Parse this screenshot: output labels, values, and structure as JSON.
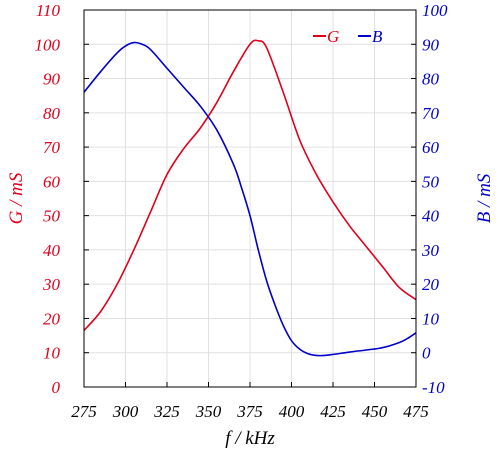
{
  "chart_data": {
    "type": "line",
    "title": "",
    "xlabel": "f / kHz",
    "ylabel_left": "G / mS",
    "ylabel_right": "B / mS",
    "xlim": [
      275,
      475
    ],
    "ylim_left": [
      0,
      110
    ],
    "ylim_right": [
      -10,
      100
    ],
    "x_ticks": [
      275,
      300,
      325,
      350,
      375,
      400,
      425,
      450,
      475
    ],
    "y_left_ticks": [
      0,
      10,
      20,
      30,
      40,
      50,
      60,
      70,
      80,
      90,
      100,
      110
    ],
    "y_right_ticks": [
      -10,
      0,
      10,
      20,
      30,
      40,
      50,
      60,
      70,
      80,
      90,
      100
    ],
    "grid": true,
    "legend_position": "top-right",
    "colors": {
      "G": "#e0001b",
      "B": "#0000c8",
      "axis": "#000000",
      "grid": "#e0e0e0"
    },
    "series": [
      {
        "name": "G",
        "axis": "left",
        "color": "#e0001b",
        "x": [
          275,
          285,
          295,
          305,
          315,
          325,
          335,
          345,
          355,
          365,
          375,
          380,
          385,
          395,
          405,
          415,
          425,
          435,
          445,
          455,
          465,
          475
        ],
        "y": [
          16.5,
          22,
          30,
          40,
          51,
          62,
          69.5,
          75.5,
          83,
          92,
          100,
          101,
          99,
          86,
          72,
          62,
          54,
          47,
          41,
          35,
          29,
          25.5
        ]
      },
      {
        "name": "B",
        "axis": "right",
        "color": "#0000c8",
        "x": [
          275,
          285,
          295,
          300,
          305,
          310,
          315,
          325,
          335,
          345,
          355,
          365,
          370,
          375,
          380,
          385,
          390,
          395,
          400,
          405,
          410,
          415,
          420,
          425,
          435,
          445,
          455,
          465,
          470,
          475
        ],
        "y": [
          76,
          82,
          87.5,
          89.5,
          90.5,
          90,
          88.5,
          83,
          77.5,
          72,
          65,
          55,
          48,
          40,
          30,
          21,
          14,
          8,
          3.5,
          1,
          -0.3,
          -0.8,
          -0.8,
          -0.5,
          0.2,
          0.8,
          1.5,
          3,
          4.2,
          5.8
        ]
      }
    ]
  }
}
